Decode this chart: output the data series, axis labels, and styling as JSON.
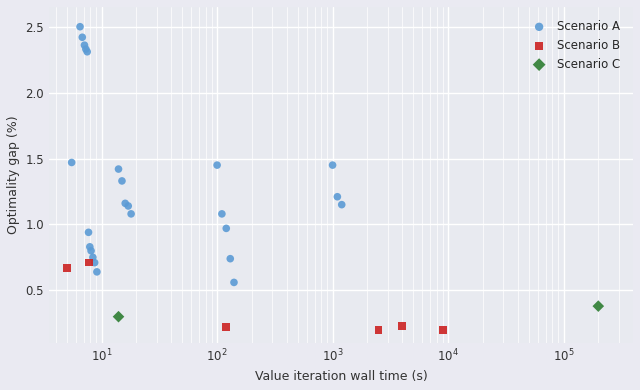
{
  "title": "",
  "xlabel": "Value iteration wall time (s)",
  "ylabel": "Optimality gap (%)",
  "scenario_A": {
    "x": [
      5.5,
      6.5,
      6.8,
      7.1,
      7.3,
      7.5,
      7.7,
      7.9,
      8.1,
      8.4,
      8.7,
      9.1,
      14,
      15,
      16,
      17,
      18,
      100,
      110,
      120,
      130,
      140,
      1000,
      1100,
      1200
    ],
    "y": [
      1.47,
      2.5,
      2.42,
      2.36,
      2.33,
      2.31,
      0.94,
      0.83,
      0.8,
      0.75,
      0.71,
      0.64,
      1.42,
      1.33,
      1.16,
      1.14,
      1.08,
      1.45,
      1.08,
      0.97,
      0.74,
      0.56,
      1.45,
      1.21,
      1.15
    ]
  },
  "scenario_B": {
    "x": [
      5.0,
      7.8,
      120,
      2500,
      4000,
      9000
    ],
    "y": [
      0.67,
      0.71,
      0.22,
      0.2,
      0.23,
      0.2
    ]
  },
  "scenario_C": {
    "x": [
      14,
      200000
    ],
    "y": [
      0.3,
      0.38
    ]
  },
  "color_A": "#5B9BD5",
  "color_B": "#CC2222",
  "color_C": "#2E7D32",
  "bg_color": "#E8EAF0",
  "fig_color": "#EAEAF2",
  "xlim": [
    3.5,
    300000
  ],
  "ylim": [
    0.1,
    2.65
  ]
}
